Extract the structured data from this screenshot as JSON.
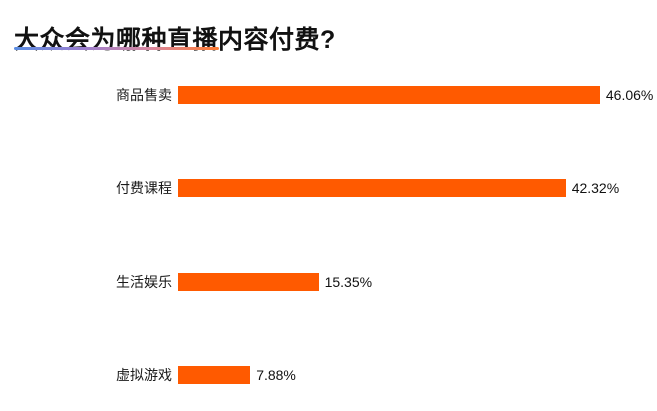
{
  "header": {
    "title": "大众会为哪种直播内容付费?",
    "underline_gradient": [
      "#5a8de2",
      "#9a7ed0",
      "#d9879f",
      "#ff7a2f"
    ]
  },
  "chart_data": {
    "type": "bar",
    "orientation": "horizontal",
    "title": "大众会为哪种直播内容付费?",
    "categories": [
      "商品售卖",
      "付费课程",
      "生活娱乐",
      "虚拟游戏"
    ],
    "values": [
      46.06,
      42.32,
      15.35,
      7.88
    ],
    "value_labels": [
      "46.06%",
      "42.32%",
      "15.35%",
      "7.88%"
    ],
    "bar_color": "#ff5a00",
    "xlabel": "",
    "ylabel": "",
    "xlim": [
      0,
      50
    ],
    "grid": false,
    "legend": false,
    "data_labels_position": "end-of-bar"
  }
}
